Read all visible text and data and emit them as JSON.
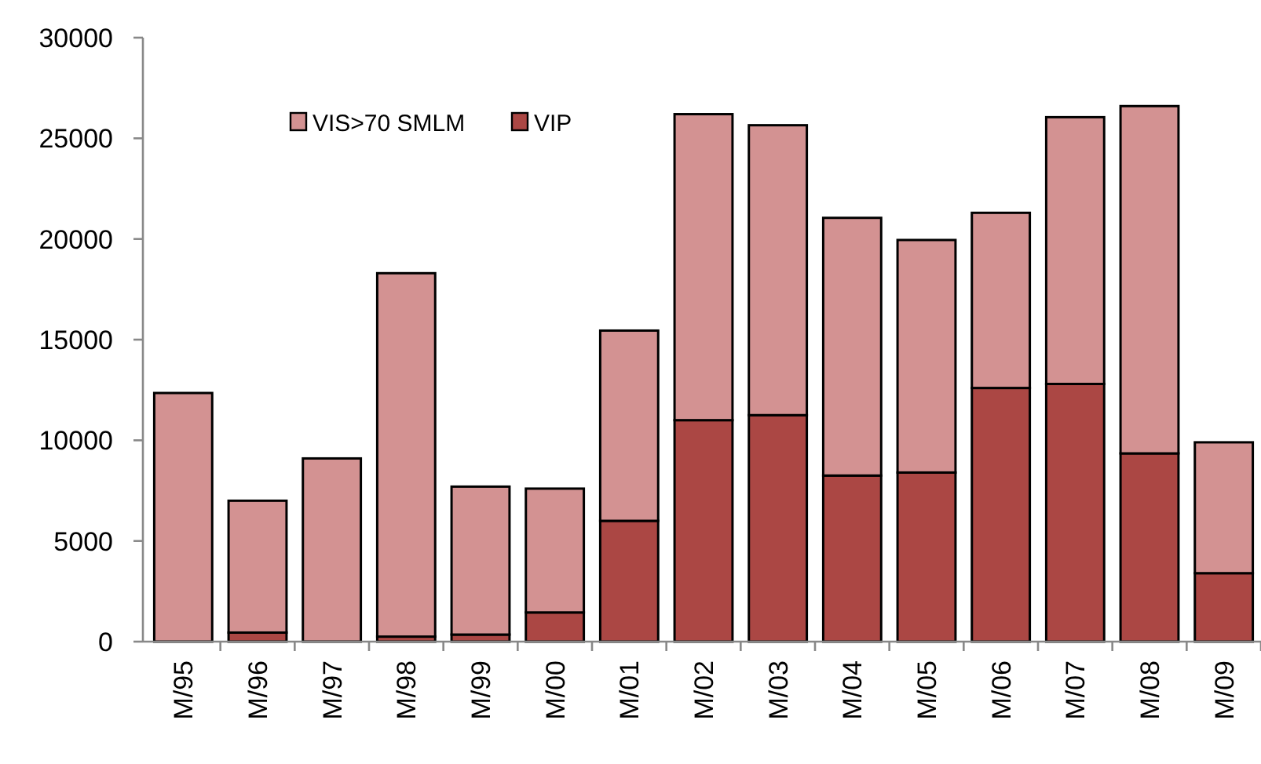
{
  "chart_data": {
    "type": "bar",
    "stacked": true,
    "categories": [
      "M/95",
      "M/96",
      "M/97",
      "M/98",
      "M/99",
      "M/00",
      "M/01",
      "M/02",
      "M/03",
      "M/04",
      "M/05",
      "M/06",
      "M/07",
      "M/08",
      "M/09"
    ],
    "series": [
      {
        "name": "VIP",
        "color": "#ab4744",
        "values": [
          0,
          450,
          null,
          250,
          350,
          1450,
          6000,
          11000,
          11250,
          8250,
          8400,
          12600,
          12800,
          9350,
          3400
        ]
      },
      {
        "name": "VIS>70 SMLM",
        "color": "#d39292",
        "values": [
          12350,
          6550,
          9100,
          18050,
          7350,
          6150,
          9450,
          15200,
          14400,
          12800,
          11550,
          8700,
          13250,
          17250,
          6500
        ]
      }
    ],
    "ylim": [
      0,
      30000
    ],
    "yticks": [
      0,
      5000,
      10000,
      15000,
      20000,
      25000,
      30000
    ],
    "legend": "top"
  }
}
